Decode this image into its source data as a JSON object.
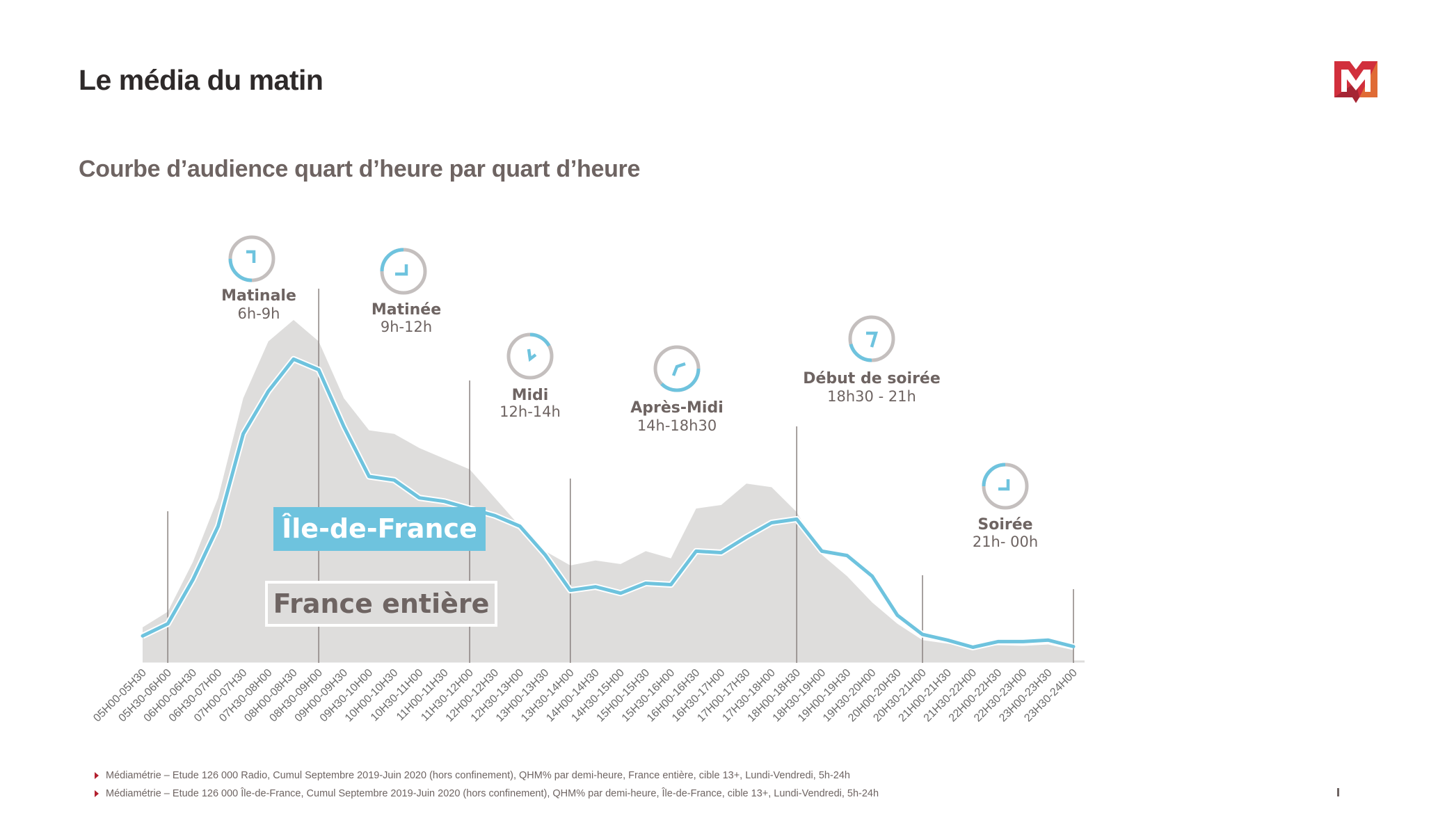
{
  "header": {
    "title": "Le média du matin",
    "subtitle": "Courbe d’audience quart d’heure par quart d’heure"
  },
  "logo": {
    "icon": "m-logo-icon",
    "colors": [
      "#d12f3c",
      "#a52534",
      "#e06b35"
    ]
  },
  "legend": {
    "ile_de_france": "Île-de-France",
    "france_entiere": "France entière"
  },
  "colors": {
    "ile_de_france_line": "#6ec3de",
    "france_entiere_area": "#dedddc",
    "text": "#6e6462",
    "clock_track": "#c4bfbe",
    "divider": "#8a8280"
  },
  "footnotes": [
    "Médiamétrie – Etude 126 000 Radio, Cumul Septembre 2019-Juin 2020 (hors confinement), QHM% par demi-heure, France entière, cible 13+, Lundi-Vendredi, 5h-24h",
    "Médiamétrie – Etude 126 000 Île-de-France, Cumul Septembre 2019-Juin 2020 (hors confinement), QHM% par demi-heure, Île-de-France, cible 13+, Lundi-Vendredi, 5h-24h"
  ],
  "chart_data": {
    "type": "area",
    "title": "Courbe d’audience quart d’heure par quart d’heure",
    "xlabel": "",
    "ylabel": "",
    "y_axis_shown": false,
    "grid": false,
    "categories": [
      "05H00-05H30",
      "05H30-06H00",
      "06H00-06H30",
      "06H30-07H00",
      "07H00-07H30",
      "07H30-08H00",
      "08H00-08H30",
      "08H30-09H00",
      "09H00-09H30",
      "09H30-10H00",
      "10H00-10H30",
      "10H30-11H00",
      "11H00-11H30",
      "11H30-12H00",
      "12H00-12H30",
      "12H30-13H00",
      "13H00-13H30",
      "13H30-14H00",
      "14H00-14H30",
      "14H30-15H00",
      "15H00-15H30",
      "15H30-16H00",
      "16H00-16H30",
      "16H30-17H00",
      "17H00-17H30",
      "17H30-18H00",
      "18H00-18H30",
      "18H30-19H00",
      "19H00-19H30",
      "19H30-20H00",
      "20H00-20H30",
      "20H30-21H00",
      "21H00-21H30",
      "21H30-22H00",
      "22H00-22H30",
      "22H30-23H00",
      "23H00-23H30",
      "23H30-24H00"
    ],
    "series": [
      {
        "name": "France entière",
        "style": "area",
        "values": [
          4.8,
          7.0,
          14.0,
          23.0,
          37.0,
          45.0,
          48.0,
          45.0,
          37.0,
          32.5,
          32.0,
          30.0,
          28.5,
          27.0,
          23.0,
          19.0,
          15.5,
          13.5,
          14.2,
          13.7,
          15.5,
          14.5,
          21.5,
          22.0,
          25.0,
          24.5,
          21.0,
          15.0,
          12.0,
          8.3,
          5.3,
          3.0,
          2.5,
          2.0,
          2.3,
          2.2,
          2.4,
          1.6
        ]
      },
      {
        "name": "Île-de-France",
        "style": "line",
        "values": [
          3.6,
          5.3,
          11.5,
          19.0,
          32.0,
          38.0,
          42.5,
          41.0,
          33.0,
          26.0,
          25.5,
          23.0,
          22.5,
          21.5,
          20.5,
          19.0,
          15.0,
          10.0,
          10.5,
          9.6,
          11.0,
          10.8,
          15.5,
          15.3,
          17.5,
          19.5,
          20.0,
          15.5,
          14.9,
          12.0,
          6.5,
          3.8,
          3.0,
          2.0,
          2.8,
          2.8,
          3.0,
          2.1
        ]
      }
    ],
    "ylim": [
      0,
      52
    ],
    "periods": [
      {
        "name": "Matinale",
        "range": "6h-9h",
        "start_index": 1,
        "end_index": 7,
        "clock_fill": 0.25
      },
      {
        "name": "Matinée",
        "range": "9h-12h",
        "start_index": 7,
        "end_index": 13,
        "clock_fill": 0.25
      },
      {
        "name": "Midi",
        "range": "12h-14h",
        "start_index": 13,
        "end_index": 17,
        "clock_fill": 0.17
      },
      {
        "name": "Après-Midi",
        "range": "14h-18h30",
        "start_index": 17,
        "end_index": 26,
        "clock_fill": 0.375
      },
      {
        "name": "Début de soirée",
        "range": "18h30 - 21h",
        "start_index": 26,
        "end_index": 31,
        "clock_fill": 0.21
      },
      {
        "name": "Soirée",
        "range": "21h- 00h",
        "start_index": 31,
        "end_index": 37,
        "clock_fill": 0.25
      }
    ]
  }
}
